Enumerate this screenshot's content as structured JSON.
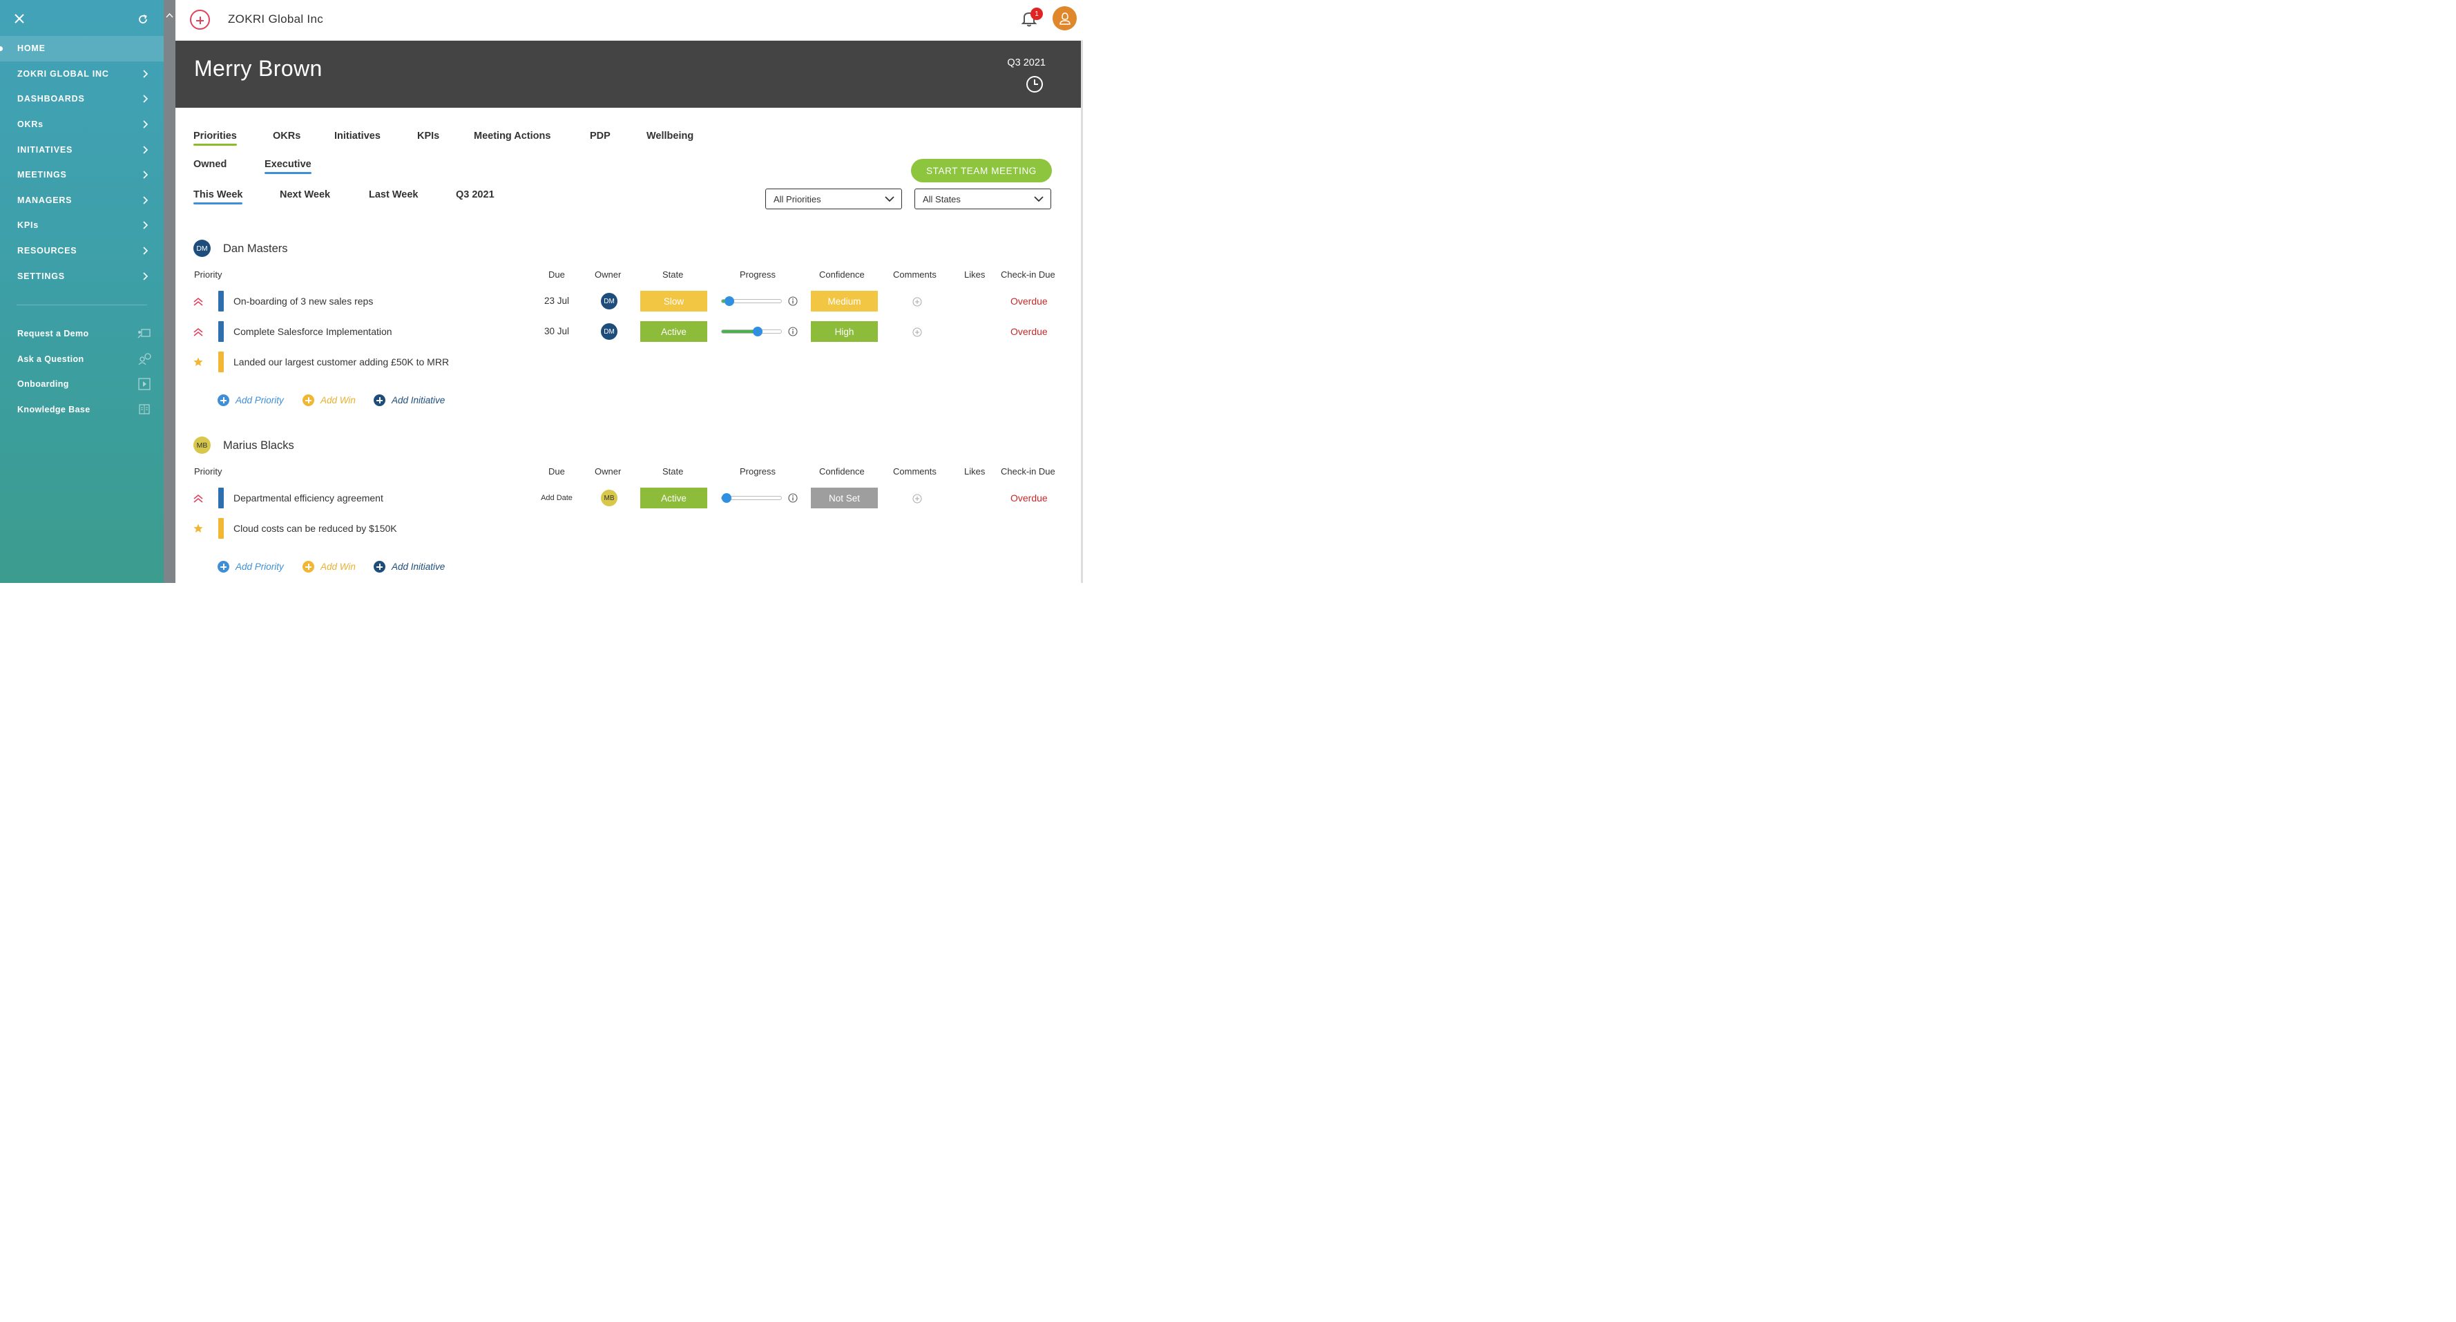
{
  "sidebar": {
    "nav": [
      {
        "label": "HOME",
        "active": true
      },
      {
        "label": "ZOKRI GLOBAL INC"
      },
      {
        "label": "DASHBOARDS"
      },
      {
        "label": "OKRs"
      },
      {
        "label": "INITIATIVES"
      },
      {
        "label": "MEETINGS"
      },
      {
        "label": "MANAGERS"
      },
      {
        "label": "KPIs"
      },
      {
        "label": "RESOURCES"
      },
      {
        "label": "SETTINGS"
      }
    ],
    "links": [
      {
        "label": "Request a Demo",
        "icon": "demo-icon"
      },
      {
        "label": "Ask a Question",
        "icon": "question-icon"
      },
      {
        "label": "Onboarding",
        "icon": "play-icon"
      },
      {
        "label": "Knowledge Base",
        "icon": "book-icon"
      }
    ]
  },
  "topbar": {
    "org": "ZOKRI Global Inc",
    "notifications": "1"
  },
  "hero": {
    "name": "Merry Brown",
    "quarter": "Q3 2021"
  },
  "tabs": [
    "Priorities",
    "OKRs",
    "Initiatives",
    "KPIs",
    "Meeting Actions",
    "PDP",
    "Wellbeing"
  ],
  "subtabs": [
    "Owned",
    "Executive"
  ],
  "periods": [
    "This Week",
    "Next Week",
    "Last Week",
    "Q3 2021"
  ],
  "start_meeting": "START TEAM MEETING",
  "filters": {
    "priorities": "All Priorities",
    "states": "All States"
  },
  "columns": {
    "priority": "Priority",
    "due": "Due",
    "owner": "Owner",
    "state": "State",
    "progress": "Progress",
    "confidence": "Confidence",
    "comments": "Comments",
    "likes": "Likes",
    "checkin": "Check-in Due"
  },
  "actions": {
    "add_priority": "Add Priority",
    "add_win": "Add Win",
    "add_initiative": "Add Initiative"
  },
  "members": [
    {
      "initials": "DM",
      "name": "Dan Masters",
      "rows": [
        {
          "title": "On-boarding of 3 new sales reps",
          "due": "23 Jul",
          "owner": "DM",
          "state": "Slow",
          "progress": 0.05,
          "confidence": "Medium",
          "checkin": "Overdue"
        },
        {
          "title": "Complete Salesforce Implementation",
          "due": "30 Jul",
          "owner": "DM",
          "state": "Active",
          "progress": 0.62,
          "confidence": "High",
          "checkin": "Overdue"
        },
        {
          "title": "Landed our largest customer adding £50K to MRR"
        }
      ]
    },
    {
      "initials": "MB",
      "name": "Marius Blacks",
      "rows": [
        {
          "title": "Departmental efficiency agreement",
          "due": "Add Date",
          "owner": "MB",
          "state": "Active",
          "progress": 0.0,
          "confidence": "Not Set",
          "checkin": "Overdue"
        },
        {
          "title": "Cloud costs can be reduced by $150K"
        }
      ]
    }
  ]
}
